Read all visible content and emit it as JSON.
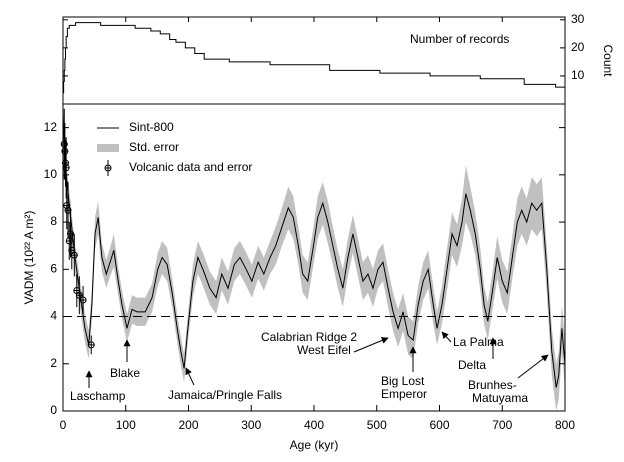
{
  "chart_data": [
    {
      "type": "step",
      "ylabel": "Count",
      "xlim": [
        0,
        800
      ],
      "ylim": [
        0,
        31
      ],
      "yticks": [
        10,
        20,
        30
      ],
      "y_axis_side": "right",
      "x": [
        0,
        1,
        2,
        3,
        4,
        5,
        7,
        10,
        20,
        40,
        60,
        80,
        115,
        140,
        155,
        170,
        180,
        195,
        210,
        225,
        265,
        330,
        365,
        425,
        505,
        585,
        665,
        735,
        785
      ],
      "series": [
        {
          "name": "Number of records",
          "color": "#000000",
          "values": [
            4,
            8,
            12,
            16,
            20,
            24,
            27,
            28,
            29,
            29,
            28,
            28,
            27,
            26,
            25,
            23,
            22,
            20,
            18,
            16,
            15,
            14,
            14,
            12,
            11,
            10,
            9,
            7,
            6
          ]
        }
      ]
    },
    {
      "type": "line",
      "xlabel": "Age (kyr)",
      "ylabel": "VADM (10²² A m²)",
      "xlim": [
        0,
        800
      ],
      "ylim": [
        0,
        13
      ],
      "xticks": [
        0,
        100,
        200,
        300,
        400,
        500,
        600,
        700,
        800
      ],
      "yticks": [
        0,
        2,
        4,
        6,
        8,
        10,
        12
      ],
      "legend": "upper left",
      "x": [
        0,
        5,
        11,
        19,
        27,
        35,
        41,
        46,
        51,
        56,
        62,
        69,
        75,
        81,
        88,
        94,
        102,
        110,
        118,
        131,
        142,
        151,
        158,
        166,
        174,
        182,
        188,
        193,
        199,
        207,
        215,
        223,
        234,
        244,
        253,
        263,
        273,
        282,
        292,
        301,
        311,
        320,
        330,
        339,
        349,
        359,
        367,
        375,
        382,
        390,
        398,
        406,
        414,
        422,
        430,
        438,
        446,
        454,
        462,
        470,
        478,
        486,
        494,
        502,
        510,
        518,
        526,
        534,
        542,
        550,
        558,
        566,
        574,
        582,
        590,
        596,
        604,
        612,
        620,
        628,
        636,
        642,
        649,
        657,
        665,
        671,
        677,
        684,
        692,
        700,
        708,
        716,
        724,
        731,
        739,
        747,
        755,
        763,
        771,
        779,
        786,
        790,
        795,
        800
      ],
      "series": [
        {
          "name": "Sint-800",
          "color": "#000000",
          "values": [
            12.5,
            10,
            8.5,
            6.5,
            5,
            3.5,
            2.8,
            4.5,
            7.5,
            8.2,
            6.5,
            5.8,
            6.3,
            6.8,
            5.5,
            4.5,
            3.5,
            4.3,
            4.2,
            4.2,
            4.8,
            6,
            6.5,
            6.2,
            5,
            3.5,
            2.5,
            1.8,
            3.5,
            5.5,
            6.5,
            6,
            5.2,
            4.8,
            5.8,
            5.2,
            6.2,
            6.5,
            6,
            5.5,
            6.3,
            5.8,
            6.5,
            7,
            7.8,
            8.6,
            8.2,
            7,
            5.8,
            5.5,
            6.8,
            8.2,
            8.8,
            8,
            7,
            6,
            5.2,
            6.5,
            7.5,
            6.5,
            5.5,
            5.8,
            5.2,
            6,
            6.3,
            5.2,
            4.2,
            3.5,
            4.2,
            3.2,
            3,
            4.5,
            5.5,
            6,
            4.5,
            3.5,
            4.5,
            6,
            7.5,
            7,
            8,
            9.2,
            8.5,
            7.5,
            6,
            4.5,
            3.8,
            5,
            6.5,
            5.5,
            5,
            6.5,
            8,
            8.5,
            8,
            8.8,
            8.5,
            8.8,
            6,
            2.5,
            1,
            1.5,
            3.5,
            2
          ]
        },
        {
          "name": "Std. error",
          "color": "#c0c0c0",
          "kind": "band",
          "values": [
            0.6,
            0.6,
            0.6,
            0.6,
            0.6,
            0.6,
            0.6,
            0.6,
            0.7,
            0.7,
            0.6,
            0.6,
            0.6,
            0.7,
            0.6,
            0.6,
            0.6,
            0.6,
            0.6,
            0.6,
            0.6,
            0.7,
            0.7,
            0.7,
            0.6,
            0.6,
            0.6,
            0.6,
            0.6,
            0.7,
            0.7,
            0.7,
            0.7,
            0.7,
            0.7,
            0.7,
            0.7,
            0.7,
            0.7,
            0.7,
            0.7,
            0.7,
            0.7,
            0.8,
            0.8,
            0.9,
            0.9,
            0.8,
            0.8,
            0.8,
            0.8,
            0.9,
            0.9,
            0.9,
            0.8,
            0.8,
            0.8,
            0.8,
            0.8,
            0.8,
            0.8,
            0.8,
            0.8,
            0.8,
            0.8,
            0.8,
            0.8,
            0.8,
            0.8,
            0.8,
            0.8,
            0.8,
            0.8,
            0.8,
            0.8,
            0.7,
            0.8,
            0.9,
            0.9,
            0.9,
            1,
            1.2,
            1,
            0.9,
            0.9,
            0.8,
            0.8,
            0.8,
            0.9,
            0.9,
            0.9,
            0.9,
            1,
            1,
            1,
            1.1,
            1.1,
            1.1,
            1,
            1,
            1,
            1,
            1,
            1
          ]
        }
      ],
      "points": {
        "name": "Volcanic data and error",
        "x": [
          2,
          3,
          4,
          5,
          6,
          8,
          10,
          12,
          14,
          18,
          22,
          26,
          32,
          45
        ],
        "values": [
          11.3,
          11,
          10.5,
          10.3,
          8.7,
          8.5,
          7.2,
          7.5,
          6.8,
          6.6,
          5.1,
          4.9,
          4.7,
          2.8
        ],
        "errors": [
          1.5,
          1.2,
          1.0,
          1.3,
          1.0,
          1.2,
          0.8,
          1.0,
          0.8,
          0.9,
          0.7,
          0.8,
          0.6,
          0.4
        ]
      },
      "reference_line": {
        "value": 4,
        "style": "dashed"
      },
      "annotations": [
        "Laschamp",
        "Blake",
        "Jamaica/Pringle Falls",
        "Calabrian Ridge 2",
        "West Eifel",
        "Big Lost",
        "Emperor",
        "La Palma",
        "Delta",
        "Brunhes-",
        "Matuyama"
      ]
    }
  ]
}
